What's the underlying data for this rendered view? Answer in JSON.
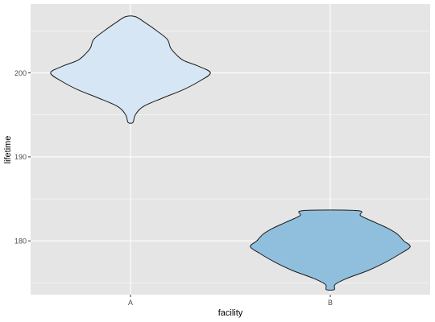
{
  "chart_data": {
    "type": "violin",
    "title": "",
    "xlabel": "facility",
    "ylabel": "lifetime",
    "categories": [
      "A",
      "B"
    ],
    "ylim": [
      173.6,
      208.2
    ],
    "yticks": [
      180,
      190,
      200
    ],
    "ytick_labels": [
      "180",
      "190",
      "200"
    ],
    "grid": true,
    "legend": "none",
    "background": "#e5e5e5",
    "grid_color": "#ffffff",
    "outline_color": "#1a1a1a",
    "violins": [
      {
        "category": "A",
        "fill": "#d6e6f4",
        "min": 194.1,
        "max": 206.7,
        "profile": [
          [
            194.1,
            0.03
          ],
          [
            195.0,
            0.06
          ],
          [
            196.0,
            0.16
          ],
          [
            197.0,
            0.4
          ],
          [
            198.0,
            0.66
          ],
          [
            199.0,
            0.86
          ],
          [
            200.0,
            1.0
          ],
          [
            200.8,
            0.85
          ],
          [
            201.5,
            0.66
          ],
          [
            202.3,
            0.56
          ],
          [
            203.0,
            0.5
          ],
          [
            204.0,
            0.46
          ],
          [
            205.0,
            0.33
          ],
          [
            206.0,
            0.18
          ],
          [
            206.7,
            0.06
          ]
        ]
      },
      {
        "category": "B",
        "fill": "#90bfdd",
        "min": 174.2,
        "max": 183.6,
        "profile": [
          [
            174.2,
            0.05
          ],
          [
            174.8,
            0.06
          ],
          [
            175.5,
            0.2
          ],
          [
            176.5,
            0.48
          ],
          [
            177.5,
            0.7
          ],
          [
            178.5,
            0.88
          ],
          [
            179.3,
            1.0
          ],
          [
            180.0,
            0.92
          ],
          [
            180.8,
            0.84
          ],
          [
            181.5,
            0.72
          ],
          [
            182.2,
            0.56
          ],
          [
            183.0,
            0.38
          ],
          [
            183.6,
            0.34
          ]
        ]
      }
    ]
  }
}
